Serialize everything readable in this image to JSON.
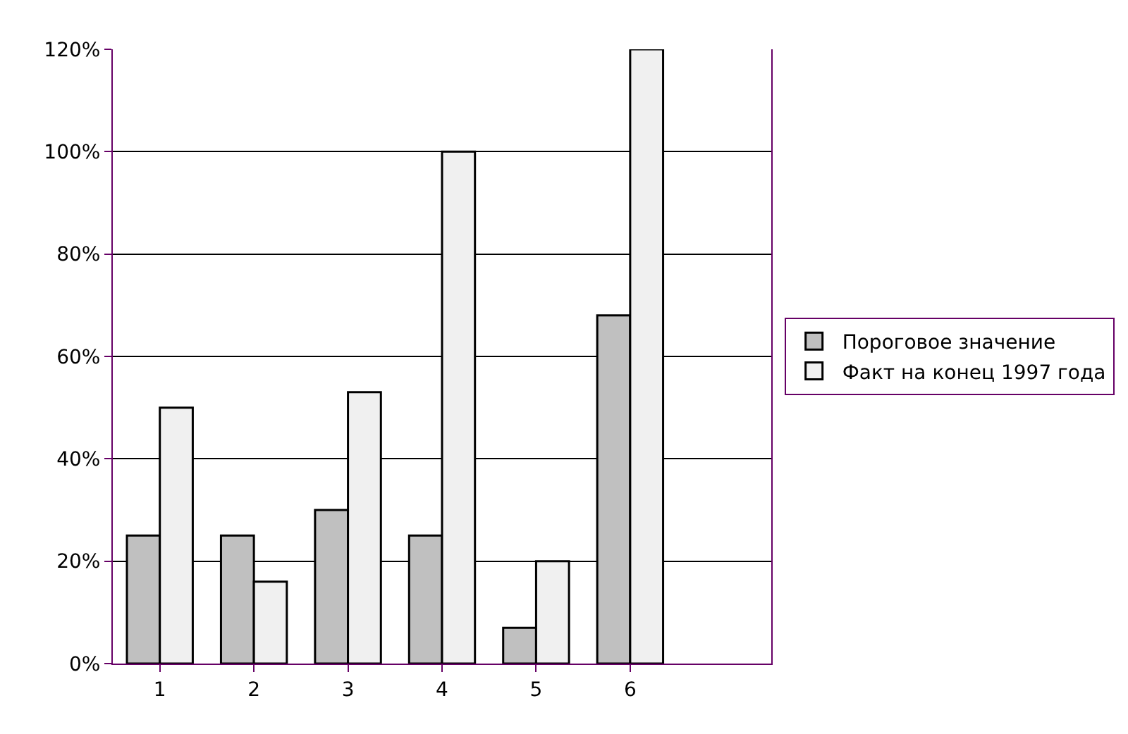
{
  "chart_data": {
    "type": "bar",
    "categories": [
      "1",
      "2",
      "3",
      "4",
      "5",
      "6",
      null
    ],
    "series": [
      {
        "name": "Пороговое значение",
        "color": "#c0c0c0",
        "values": [
          25,
          25,
          30,
          25,
          7,
          68,
          null
        ]
      },
      {
        "name": "Факт на конец 1997 года",
        "color": "#f0f0f0",
        "values": [
          50,
          16,
          53,
          100,
          20,
          120,
          null
        ]
      }
    ],
    "ylim": [
      0,
      120
    ],
    "yticks": [
      {
        "value": 0,
        "label": "0%"
      },
      {
        "value": 20,
        "label": "20%"
      },
      {
        "value": 40,
        "label": "40%"
      },
      {
        "value": 60,
        "label": "60%"
      },
      {
        "value": 80,
        "label": "80%"
      },
      {
        "value": 100,
        "label": "100%"
      },
      {
        "value": 120,
        "label": "120%"
      }
    ],
    "grid": "y",
    "legend": "right"
  }
}
